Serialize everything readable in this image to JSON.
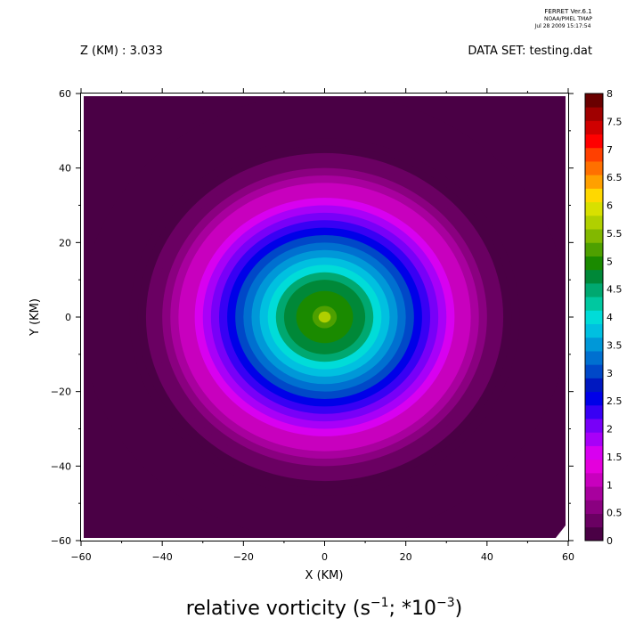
{
  "header": {
    "ferret_line1": "FERRET  Ver.6.1",
    "ferret_line2": "NOAA/PMEL TMAP",
    "ferret_line3": "Jul 28 2009 15:17:54",
    "z_label": "Z (KM) : 3.033",
    "dataset_label": "DATA SET: testing.dat"
  },
  "chart_data": {
    "type": "heatmap",
    "title": "relative vorticity (s⁻¹; *10⁻³)",
    "title_parts": {
      "main": "relative vorticity (s",
      "exp1": "−1",
      "mid": "; *10",
      "exp2": "−3",
      "end": ")"
    },
    "xlabel": "X (KM)",
    "ylabel": "Y (KM)",
    "xlim": [
      -60,
      60
    ],
    "ylim": [
      -60,
      60
    ],
    "x_ticks": [
      -60,
      -40,
      -20,
      0,
      20,
      40,
      60
    ],
    "x_tick_labels": [
      "−60",
      "−40",
      "−20",
      "0",
      "20",
      "40",
      "60"
    ],
    "y_ticks": [
      -60,
      -40,
      -20,
      0,
      20,
      40,
      60
    ],
    "y_tick_labels": [
      "−60",
      "−40",
      "−20",
      "0",
      "20",
      "40",
      "60"
    ],
    "field": {
      "center": [
        0,
        0
      ],
      "radius_profile_km": [
        0,
        3,
        7,
        10,
        12,
        14,
        16,
        18,
        20,
        22,
        24,
        26,
        28,
        30,
        32,
        34,
        36,
        38,
        40,
        42,
        44,
        46,
        48,
        60
      ],
      "value_profile": [
        5.9,
        5.4,
        5.1,
        4.8,
        4.5,
        4.2,
        3.9,
        3.6,
        3.3,
        3.0,
        2.7,
        2.4,
        2.1,
        1.8,
        1.5,
        1.2,
        1.0,
        0.8,
        0.6,
        0.45,
        0.3,
        0.2,
        0.05,
        0.0
      ]
    },
    "colorbar": {
      "levels": [
        0,
        0.25,
        0.5,
        0.75,
        1,
        1.25,
        1.5,
        1.75,
        2,
        2.25,
        2.5,
        2.75,
        3,
        3.25,
        3.5,
        3.75,
        4,
        4.25,
        4.5,
        4.75,
        5,
        5.25,
        5.5,
        5.75,
        6,
        6.25,
        6.5,
        6.75,
        7,
        7.25,
        7.5,
        7.75,
        8
      ],
      "colors": [
        "#4a0045",
        "#6a0062",
        "#8a0080",
        "#a8009e",
        "#c800be",
        "#e400dc",
        "#d800f0",
        "#a800f8",
        "#7800f8",
        "#3800f4",
        "#0000e8",
        "#0018c0",
        "#0048c8",
        "#0070d0",
        "#0098d8",
        "#00c0e0",
        "#00dcd8",
        "#00c8a0",
        "#00a870",
        "#008838",
        "#1a8a00",
        "#4ea000",
        "#82b800",
        "#b0d000",
        "#d8e000",
        "#ffd800",
        "#ffa000",
        "#ff7000",
        "#ff4000",
        "#ff0000",
        "#d00000",
        "#a00000",
        "#6a0000"
      ],
      "labels": [
        "8",
        "7.5",
        "7",
        "6.5",
        "6",
        "5.5",
        "5",
        "4.5",
        "4",
        "3.5",
        "3",
        "2.5",
        "2",
        "1.5",
        "1",
        "0.5",
        "0"
      ],
      "label_values": [
        8,
        7.5,
        7,
        6.5,
        6,
        5.5,
        5,
        4.5,
        4,
        3.5,
        3,
        2.5,
        2,
        1.5,
        1,
        0.5,
        0
      ]
    }
  }
}
